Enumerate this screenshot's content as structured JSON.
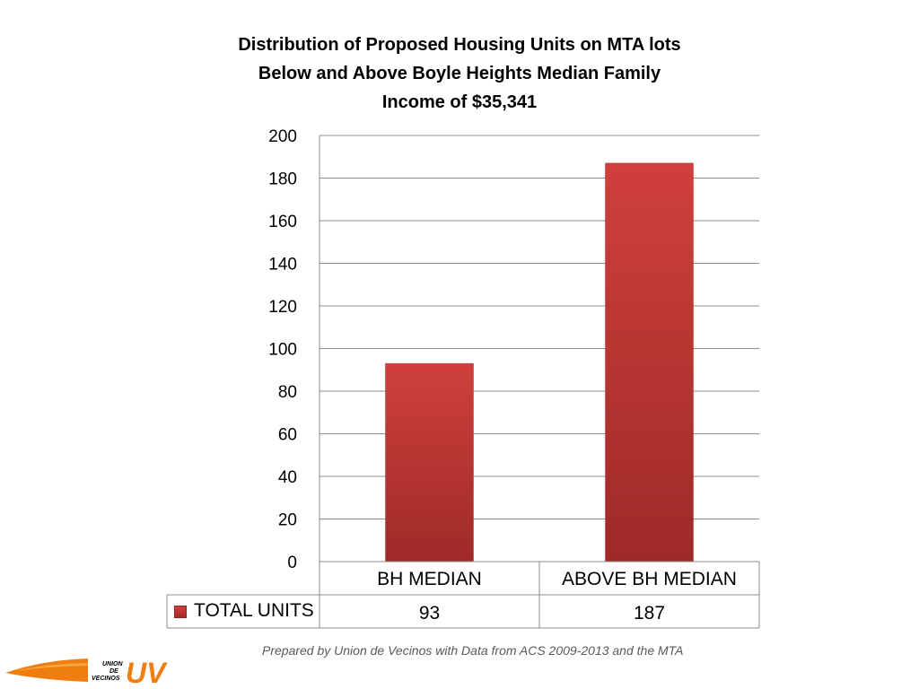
{
  "chart_data": {
    "type": "bar",
    "title_lines": [
      "Distribution of Proposed Housing Units on MTA lots",
      "Below and Above Boyle Heights Median Family",
      "Income  of $35,341"
    ],
    "categories": [
      "BH MEDIAN",
      "ABOVE BH MEDIAN"
    ],
    "series": [
      {
        "name": "TOTAL UNITS",
        "values": [
          93,
          187
        ],
        "color": "#c43a36"
      }
    ],
    "ylim": [
      0,
      200
    ],
    "yticks": [
      0,
      20,
      40,
      60,
      80,
      100,
      120,
      140,
      160,
      180,
      200
    ],
    "grid": true,
    "data_table": true
  },
  "footer": {
    "note": "Prepared by Union de Vecinos with Data from ACS 2009-2013 and the MTA",
    "logo_text_1": "UNION",
    "logo_text_2": "DE",
    "logo_text_3": "VECINOS",
    "logo_mark": "UV"
  },
  "colors": {
    "bar_top": "#d0403c",
    "bar_bottom": "#9e2a28",
    "logo": "#f07d10"
  }
}
